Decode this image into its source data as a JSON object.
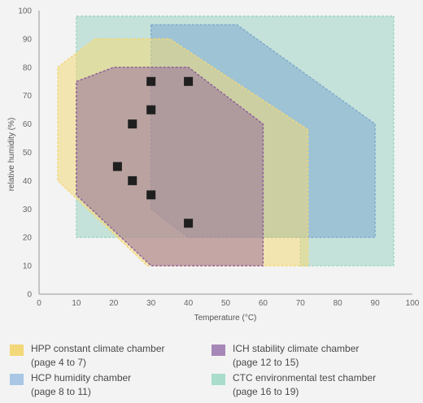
{
  "chart_data": {
    "type": "area",
    "xlabel": "Temperature (°C)",
    "ylabel": "relative humidity (%)",
    "xlim": [
      0,
      100
    ],
    "ylim": [
      0,
      100
    ],
    "xticks": [
      0,
      10,
      20,
      30,
      40,
      50,
      60,
      70,
      80,
      90,
      100
    ],
    "yticks": [
      0,
      10,
      20,
      30,
      40,
      50,
      60,
      70,
      80,
      90,
      100
    ],
    "grid": false,
    "legend_position": "bottom",
    "series": [
      {
        "key": "ctc",
        "color": "#9fd4c4",
        "polygon": [
          [
            10,
            98
          ],
          [
            95,
            98
          ],
          [
            95,
            10
          ],
          [
            70,
            10
          ],
          [
            70,
            20
          ],
          [
            10,
            20
          ]
        ]
      },
      {
        "key": "hcp",
        "color": "#7ea9cf",
        "polygon": [
          [
            30,
            95
          ],
          [
            53,
            95
          ],
          [
            90,
            60
          ],
          [
            90,
            20
          ],
          [
            40,
            20
          ],
          [
            30,
            30
          ]
        ]
      },
      {
        "key": "hpp",
        "color": "#f3d879",
        "polygon": [
          [
            5,
            80
          ],
          [
            15,
            90
          ],
          [
            35,
            90
          ],
          [
            72,
            58
          ],
          [
            72,
            10
          ],
          [
            29,
            10
          ],
          [
            5,
            40
          ]
        ]
      },
      {
        "key": "ich",
        "color": "#8c5a9a",
        "polygon": [
          [
            10,
            75
          ],
          [
            20,
            80
          ],
          [
            40,
            80
          ],
          [
            60,
            60
          ],
          [
            60,
            10
          ],
          [
            30,
            10
          ],
          [
            10,
            35
          ]
        ]
      }
    ],
    "points": [
      {
        "x": 30,
        "y": 75
      },
      {
        "x": 40,
        "y": 75
      },
      {
        "x": 30,
        "y": 65
      },
      {
        "x": 25,
        "y": 60
      },
      {
        "x": 21,
        "y": 45
      },
      {
        "x": 25,
        "y": 40
      },
      {
        "x": 30,
        "y": 35
      },
      {
        "x": 40,
        "y": 25
      }
    ]
  },
  "legend": {
    "items": [
      {
        "key": "hpp",
        "line1": "HPP constant climate chamber",
        "line2": "(page 4 to 7)",
        "color": "#f3d879"
      },
      {
        "key": "hcp",
        "line1": "HCP humidity chamber",
        "line2": "(page 8 to 11)",
        "color": "#a9c6e4"
      },
      {
        "key": "ich",
        "line1": "ICH stability climate chamber",
        "line2": "(page 12 to 15)",
        "color": "#a688b8"
      },
      {
        "key": "ctc",
        "line1": "CTC environmental test chamber",
        "line2": "(page 16 to 19)",
        "color": "#a9dccb"
      }
    ]
  }
}
